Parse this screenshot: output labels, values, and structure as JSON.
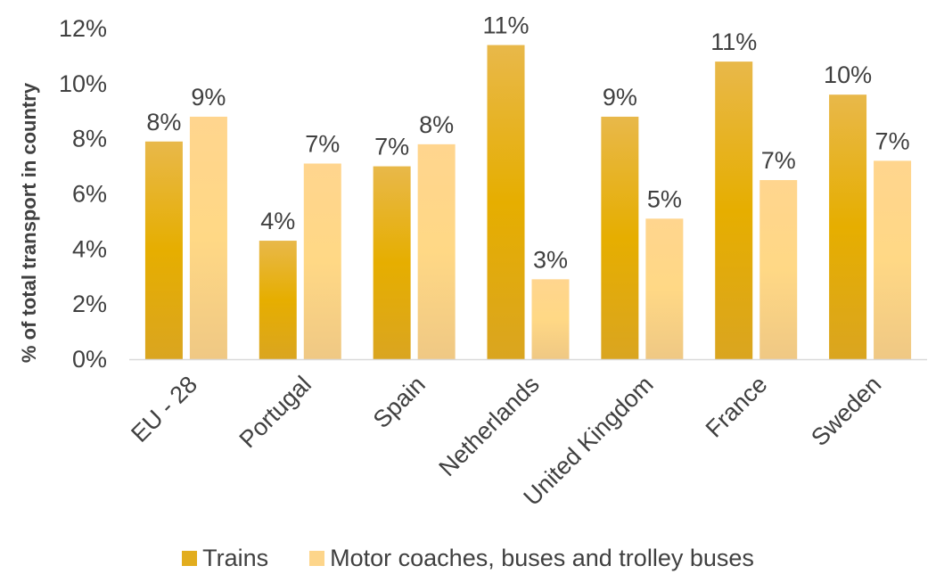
{
  "chart_data": {
    "type": "bar",
    "categories": [
      "EU - 28",
      "Portugal",
      "Spain",
      "Netherlands",
      "United Kingdom",
      "France",
      "Sweden"
    ],
    "series": [
      {
        "name": "Trains",
        "values": [
          7.9,
          4.3,
          7.0,
          11.4,
          8.8,
          10.8,
          9.6
        ],
        "labels": [
          "8%",
          "4%",
          "7%",
          "11%",
          "9%",
          "11%",
          "10%"
        ],
        "color": "#E2AD1E"
      },
      {
        "name": "Motor coaches, buses and trolley buses",
        "values": [
          8.8,
          7.1,
          7.8,
          2.9,
          5.1,
          6.5,
          7.2
        ],
        "labels": [
          "9%",
          "7%",
          "8%",
          "3%",
          "5%",
          "7%",
          "7%"
        ],
        "color": "#FDD58A"
      }
    ],
    "ylabel": "% of total transport in country",
    "xlabel": "",
    "ylim": [
      0,
      12
    ],
    "yticks": [
      "0%",
      "2%",
      "4%",
      "6%",
      "8%",
      "10%",
      "12%"
    ],
    "grid": false,
    "legend_position": "bottom"
  },
  "colors": {
    "text": "#404040",
    "axis": "#D9D9D9"
  }
}
